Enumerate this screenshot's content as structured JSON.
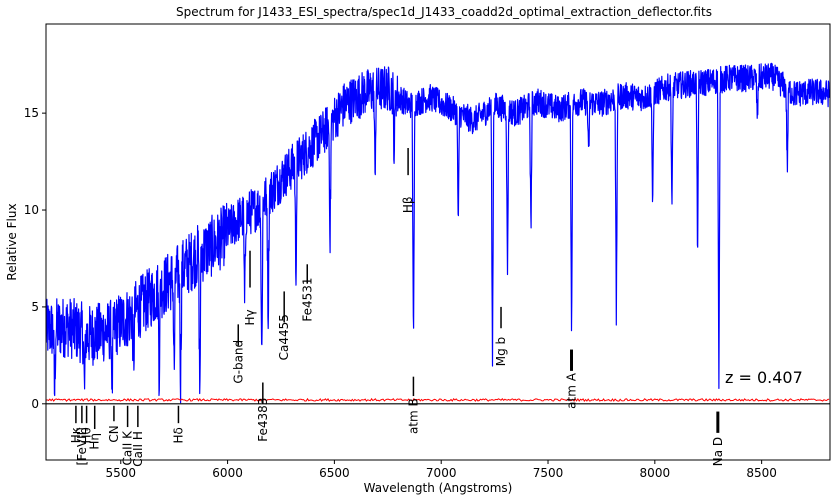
{
  "chart_data": {
    "type": "line",
    "title": "Spectrum for J1433_ESI_spectra/spec1d_J1433_coadd2d_optimal_extraction_deflector.fits",
    "xlabel": "Wavelength (Angstroms)",
    "ylabel": "Relative Flux",
    "xlim": [
      5150,
      8820
    ],
    "ylim": [
      -2.9,
      19.6
    ],
    "xticks": [
      5500,
      6000,
      6500,
      7000,
      7500,
      8000,
      8500
    ],
    "yticks": [
      0,
      5,
      10,
      15
    ],
    "redshift_label": "z = 0.407",
    "colors": {
      "flux": "#0000ff",
      "error": "#ff0000",
      "zero_line": "#000000"
    },
    "flux_continuum": [
      [
        5150,
        3.8
      ],
      [
        5250,
        4.0
      ],
      [
        5350,
        3.5
      ],
      [
        5450,
        3.8
      ],
      [
        5550,
        4.6
      ],
      [
        5650,
        5.6
      ],
      [
        5750,
        6.5
      ],
      [
        5850,
        7.6
      ],
      [
        5950,
        8.3
      ],
      [
        6050,
        9.5
      ],
      [
        6150,
        10.2
      ],
      [
        6250,
        11.6
      ],
      [
        6350,
        12.8
      ],
      [
        6450,
        14.0
      ],
      [
        6550,
        15.5
      ],
      [
        6650,
        16.1
      ],
      [
        6750,
        16.3
      ],
      [
        6850,
        15.4
      ],
      [
        6950,
        15.8
      ],
      [
        7050,
        15.2
      ],
      [
        7150,
        14.6
      ],
      [
        7250,
        15.4
      ],
      [
        7350,
        15.0
      ],
      [
        7450,
        15.6
      ],
      [
        7550,
        15.2
      ],
      [
        7650,
        15.6
      ],
      [
        7750,
        15.5
      ],
      [
        7850,
        15.9
      ],
      [
        7950,
        15.8
      ],
      [
        8050,
        16.3
      ],
      [
        8150,
        16.5
      ],
      [
        8250,
        16.6
      ],
      [
        8350,
        16.8
      ],
      [
        8450,
        16.8
      ],
      [
        8550,
        16.9
      ],
      [
        8650,
        16.0
      ],
      [
        8750,
        16.1
      ],
      [
        8820,
        16.0
      ]
    ],
    "flux_absorption": [
      [
        5190,
        0.3
      ],
      [
        5330,
        0.5
      ],
      [
        5460,
        0.8
      ],
      [
        5560,
        1.8
      ],
      [
        5680,
        1.4
      ],
      [
        5750,
        1.3
      ],
      [
        5780,
        1.2
      ],
      [
        5870,
        0.2
      ],
      [
        6080,
        4.8
      ],
      [
        6160,
        1.8
      ],
      [
        6190,
        4.2
      ],
      [
        6320,
        6.5
      ],
      [
        6480,
        8.5
      ],
      [
        6690,
        11.8
      ],
      [
        6780,
        12.8
      ],
      [
        6870,
        2.2
      ],
      [
        7080,
        9.0
      ],
      [
        7240,
        1.7
      ],
      [
        7310,
        6.5
      ],
      [
        7420,
        8.8
      ],
      [
        7610,
        3.6
      ],
      [
        7690,
        12.5
      ],
      [
        7820,
        4.0
      ],
      [
        7990,
        9.8
      ],
      [
        8080,
        9.9
      ],
      [
        8200,
        7.6
      ],
      [
        8300,
        0.4
      ],
      [
        8480,
        14.6
      ],
      [
        8620,
        12.0
      ]
    ],
    "error_level": 0.2,
    "zero_line": 0,
    "annotations": [
      {
        "label": "Hβ",
        "x": 6845,
        "side": "above",
        "y_from": 11.8,
        "y_to": 13.2
      },
      {
        "label": "G-band",
        "x": 6050,
        "side": "above",
        "y_from": 3.0,
        "y_to": 4.1
      },
      {
        "label": "Hγ",
        "x": 6105,
        "side": "above",
        "y_from": 6.0,
        "y_to": 7.9
      },
      {
        "label": "Ca4455",
        "x": 6265,
        "side": "above",
        "y_from": 4.2,
        "y_to": 5.8
      },
      {
        "label": "Fe4531",
        "x": 6373,
        "side": "above",
        "y_from": 6.2,
        "y_to": 7.2
      },
      {
        "label": "Mg b",
        "x": 7280,
        "side": "above",
        "y_from": 3.9,
        "y_to": 5.0
      },
      {
        "label": "atm A",
        "x": 7610,
        "side": "above",
        "y_from": 1.7,
        "y_to": 2.8
      },
      {
        "label": "atm B",
        "x": 6870,
        "side": "above",
        "y_from": 0.4,
        "y_to": 1.4
      },
      {
        "label": "Fe4383",
        "x": 6165,
        "side": "above",
        "y_from": 0.0,
        "y_to": 1.1
      },
      {
        "label": "[FeVII]",
        "x": 5318,
        "side": "below",
        "y_from": -0.1,
        "y_to": -1.0
      },
      {
        "label": "Hκ",
        "x": 5290,
        "side": "below",
        "y_from": -0.1,
        "y_to": -1.0
      },
      {
        "label": "Hθ",
        "x": 5340,
        "side": "below",
        "y_from": -0.1,
        "y_to": -1.0
      },
      {
        "label": "Hη",
        "x": 5378,
        "side": "below",
        "y_from": -0.1,
        "y_to": -1.3
      },
      {
        "label": "CN",
        "x": 5468,
        "side": "below",
        "y_from": -0.1,
        "y_to": -0.9
      },
      {
        "label": "CaII K",
        "x": 5532,
        "side": "below",
        "y_from": -0.1,
        "y_to": -1.2
      },
      {
        "label": "CaII H",
        "x": 5580,
        "side": "below",
        "y_from": -0.1,
        "y_to": -1.2
      },
      {
        "label": "Hδ",
        "x": 5770,
        "side": "below",
        "y_from": -0.1,
        "y_to": -1.0
      },
      {
        "label": "Na D",
        "x": 8295,
        "side": "below",
        "y_from": -0.4,
        "y_to": -1.5
      }
    ]
  }
}
